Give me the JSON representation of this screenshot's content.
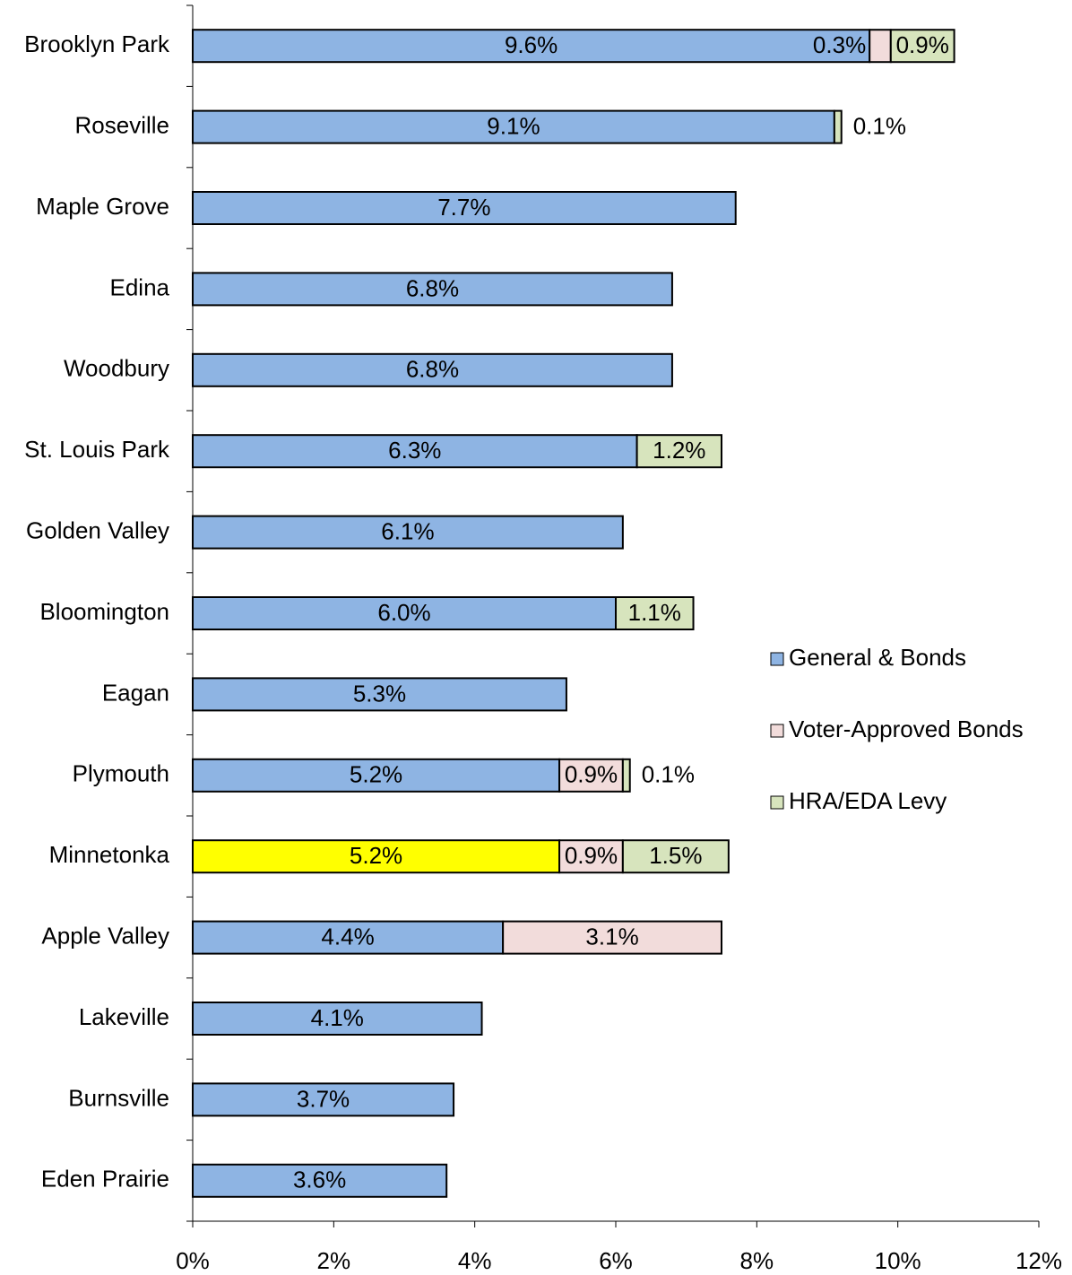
{
  "chart_data": {
    "type": "stacked-bar-horizontal",
    "categories": [
      "Brooklyn Park",
      "Roseville",
      "Maple Grove",
      "Edina",
      "Woodbury",
      "St. Louis Park",
      "Golden Valley",
      "Bloomington",
      "Eagan",
      "Plymouth",
      "Minnetonka",
      "Apple Valley",
      "Lakeville",
      "Burnsville",
      "Eden Prairie"
    ],
    "series": [
      {
        "name": "General & Bonds",
        "color": "#8eb4e3",
        "point_colors": {
          "10": "#ffff00"
        },
        "values": [
          9.6,
          9.1,
          7.7,
          6.8,
          6.8,
          6.3,
          6.1,
          6.0,
          5.3,
          5.2,
          5.2,
          4.4,
          4.1,
          3.7,
          3.6
        ],
        "value_labels": [
          "9.6%",
          "9.1%",
          "7.7%",
          "6.8%",
          "6.8%",
          "6.3%",
          "6.1%",
          "6.0%",
          "5.3%",
          "5.2%",
          "5.2%",
          "4.4%",
          "4.1%",
          "3.7%",
          "3.6%"
        ]
      },
      {
        "name": "Voter-Approved Bonds",
        "color": "#f2dcdb",
        "values": [
          0.3,
          null,
          null,
          null,
          null,
          null,
          null,
          null,
          null,
          0.9,
          0.9,
          3.1,
          null,
          null,
          null
        ],
        "value_labels": [
          "0.3%",
          null,
          null,
          null,
          null,
          null,
          null,
          null,
          null,
          "0.9%",
          "0.9%",
          "3.1%",
          null,
          null,
          null
        ]
      },
      {
        "name": "HRA/EDA Levy",
        "color": "#d7e4bd",
        "values": [
          0.9,
          0.1,
          null,
          null,
          null,
          1.2,
          null,
          1.1,
          null,
          0.1,
          1.5,
          null,
          null,
          null,
          null
        ],
        "value_labels": [
          "0.9%",
          "0.1%",
          null,
          null,
          null,
          "1.2%",
          null,
          "1.1%",
          null,
          "0.1%",
          "1.5%",
          null,
          null,
          null,
          null
        ]
      }
    ],
    "xlim": [
      0,
      12
    ],
    "xticks": [
      {
        "value": 0,
        "label": "0%"
      },
      {
        "value": 2,
        "label": "2%"
      },
      {
        "value": 4,
        "label": "4%"
      },
      {
        "value": 6,
        "label": "6%"
      },
      {
        "value": 8,
        "label": "8%"
      },
      {
        "value": 10,
        "label": "10%"
      },
      {
        "value": 12,
        "label": "12%"
      }
    ],
    "legend": "right"
  }
}
